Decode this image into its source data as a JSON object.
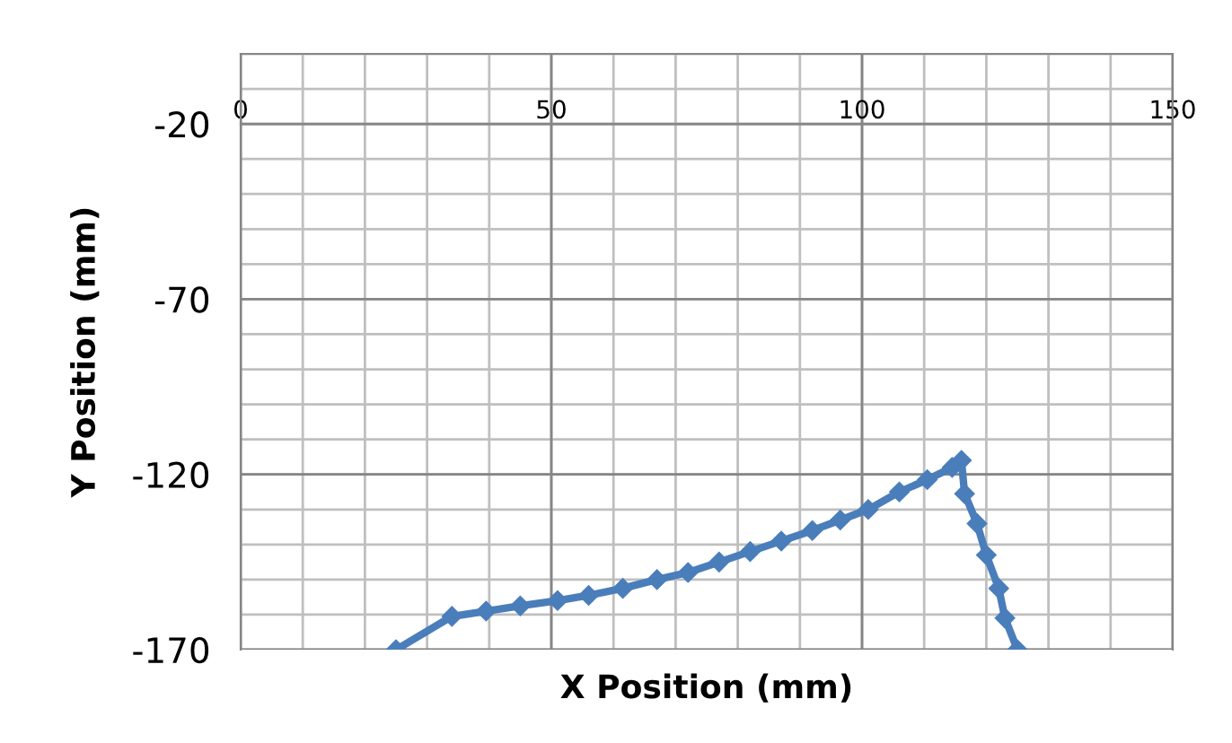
{
  "chart_data": {
    "type": "line",
    "xlabel": "X Position (mm)",
    "ylabel": "Y Position (mm)",
    "x": [
      25,
      34,
      39.5,
      45,
      51,
      56,
      61.5,
      67,
      72,
      77,
      82,
      87,
      92,
      96.5,
      101,
      106,
      110.5,
      114.5,
      116,
      116.5,
      118.5,
      120,
      122,
      123,
      125
    ],
    "series": [
      {
        "color": "#4a7ebb",
        "values": [
          -170,
          -160.5,
          -159,
          -157.5,
          -156,
          -154.5,
          -152.5,
          -150,
          -148,
          -145,
          -142,
          -139,
          -136,
          -133,
          -130,
          -125,
          -121.5,
          -118,
          -116,
          -125.5,
          -134,
          -143,
          -152.5,
          -161,
          -170
        ]
      }
    ],
    "xlim": [
      0,
      150
    ],
    "xticks": [
      0,
      50,
      100,
      150
    ],
    "ylim": [
      -170,
      0
    ],
    "yticks": [
      -170,
      -120,
      -70,
      -20
    ],
    "grid": true,
    "marker": "diamond",
    "line_style": "solid",
    "legend": false
  }
}
